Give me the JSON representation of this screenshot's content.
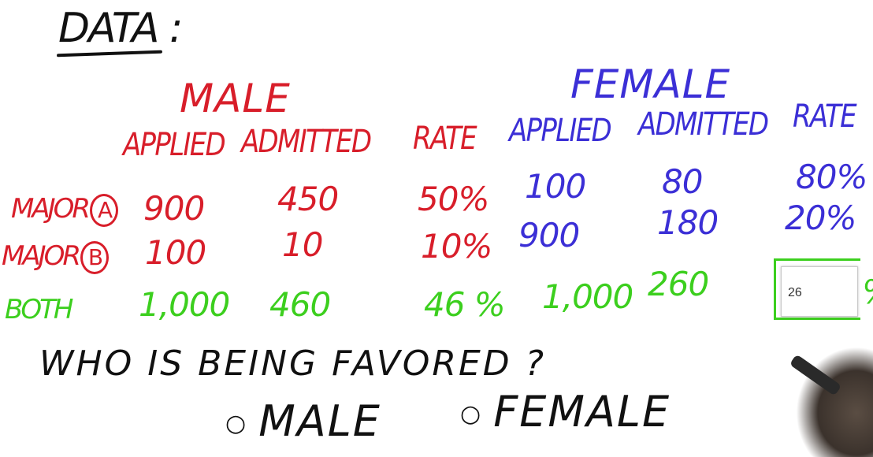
{
  "title": "DATA :",
  "male": {
    "header": "MALE",
    "columns": [
      "APPLIED",
      "ADMITTED",
      "RATE"
    ]
  },
  "female": {
    "header": "FEMALE",
    "columns": [
      "APPLIED",
      "ADMITTED",
      "RATE"
    ]
  },
  "rows": [
    {
      "label": "MAJOR",
      "badge": "A",
      "male_applied": "900",
      "male_admitted": "450",
      "male_rate": "50%",
      "female_applied": "100",
      "female_admitted": "80",
      "female_rate": "80%"
    },
    {
      "label": "MAJOR",
      "badge": "B",
      "male_applied": "100",
      "male_admitted": "10",
      "male_rate": "10%",
      "female_applied": "900",
      "female_admitted": "180",
      "female_rate": "20%"
    },
    {
      "label": "BOTH",
      "male_applied": "1,000",
      "male_admitted": "460",
      "male_rate": "46 %",
      "female_applied": "1,000",
      "female_admitted": "260"
    }
  ],
  "answer_input": {
    "value": "26",
    "suffix": "%"
  },
  "question": "WHO IS BEING FAVORED ?",
  "options": [
    "MALE",
    "FEMALE"
  ]
}
